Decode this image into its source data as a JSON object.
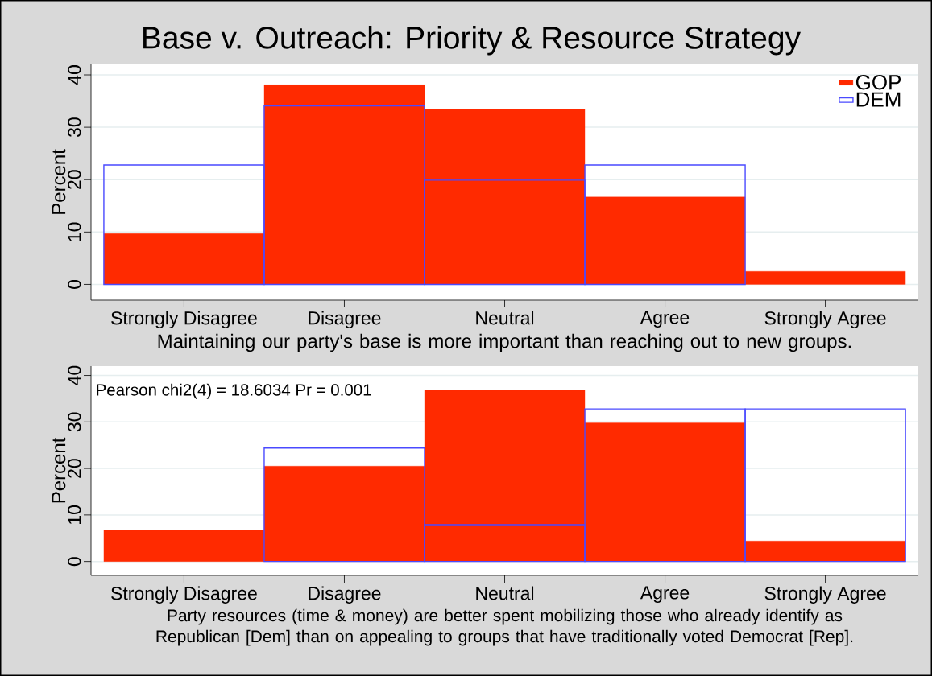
{
  "chart_data": [
    {
      "type": "bar",
      "title": "Base v. Outreach: Priority & Resource Strategy",
      "xlabel": "Maintaining our party's base is more important than reaching out to new groups.",
      "ylabel": "Percent",
      "categories": [
        "Strongly Disagree",
        "Disagree",
        "Neutral",
        "Agree",
        "Strongly Agree"
      ],
      "series": [
        {
          "name": "GOP",
          "color": "#ff2a00",
          "values": [
            9.7,
            38.1,
            33.4,
            16.7,
            2.5
          ]
        },
        {
          "name": "DEM",
          "color": "#4a4aff",
          "values": [
            22.8,
            34.1,
            19.9,
            22.8,
            0
          ]
        }
      ],
      "ylim": [
        -3,
        42
      ],
      "yticks": [
        0,
        10,
        20,
        30,
        40
      ],
      "grid": "y",
      "legend": "top right"
    },
    {
      "type": "bar",
      "xlabel": "Party resources (time & money) are better spent mobilizing those who already identify as Republican [Dem] than on appealing to groups that have traditionally voted Democrat [Rep].",
      "ylabel": "Percent",
      "categories": [
        "Strongly Disagree",
        "Disagree",
        "Neutral",
        "Agree",
        "Strongly Agree"
      ],
      "series": [
        {
          "color": "#ff2a00",
          "values": [
            6.7,
            20.5,
            36.8,
            29.8,
            4.4
          ]
        },
        {
          "color": "#4a4aff",
          "values": [
            0,
            24.4,
            7.9,
            32.8,
            32.8
          ]
        }
      ],
      "ylim": [
        -3,
        42
      ],
      "yticks": [
        0,
        10,
        20,
        30,
        40
      ],
      "grid": "y",
      "annotations": [
        "Pearson chi2(4) = 18.6034   Pr = 0.001"
      ]
    }
  ]
}
